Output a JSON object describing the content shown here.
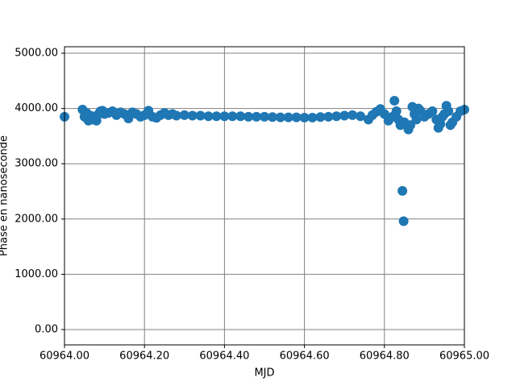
{
  "chart_data": {
    "type": "scatter",
    "xlabel": "MJD",
    "ylabel": "Phase en nanoseconde",
    "color": "#1f77b4",
    "grid": true,
    "xlim": [
      60964.0,
      60965.0
    ],
    "ylim": [
      -277,
      5117
    ],
    "xticks": [
      {
        "value": 60964.0,
        "label": "60964.00"
      },
      {
        "value": 60964.2,
        "label": "60964.20"
      },
      {
        "value": 60964.4,
        "label": "60964.40"
      },
      {
        "value": 60964.6,
        "label": "60964.60"
      },
      {
        "value": 60964.8,
        "label": "60964.80"
      },
      {
        "value": 60965.0,
        "label": "60965.00"
      }
    ],
    "yticks": [
      {
        "value": 0,
        "label": "0.00"
      },
      {
        "value": 1000,
        "label": "1000.00"
      },
      {
        "value": 2000,
        "label": "2000.00"
      },
      {
        "value": 3000,
        "label": "3000.00"
      },
      {
        "value": 4000,
        "label": "4000.00"
      },
      {
        "value": 5000,
        "label": "5000.00"
      }
    ],
    "x": [
      60964.0,
      60964.045,
      60964.05,
      60964.055,
      60964.06,
      60964.065,
      60964.07,
      60964.075,
      60964.08,
      60964.085,
      60964.09,
      60964.095,
      60964.1,
      60964.11,
      60964.12,
      60964.13,
      60964.14,
      60964.15,
      60964.16,
      60964.17,
      60964.18,
      60964.19,
      60964.2,
      60964.21,
      60964.22,
      60964.23,
      60964.24,
      60964.25,
      60964.26,
      60964.27,
      60964.28,
      60964.3,
      60964.32,
      60964.34,
      60964.36,
      60964.38,
      60964.4,
      60964.42,
      60964.44,
      60964.46,
      60964.48,
      60964.5,
      60964.52,
      60964.54,
      60964.56,
      60964.58,
      60964.6,
      60964.62,
      60964.64,
      60964.66,
      60964.68,
      60964.7,
      60964.72,
      60964.74,
      60964.76,
      60964.77,
      60964.78,
      60964.79,
      60964.8,
      60964.81,
      60964.82,
      60964.825,
      60964.83,
      60964.835,
      60964.84,
      60964.845,
      60964.848,
      60964.85,
      60964.86,
      60964.865,
      60964.87,
      60964.875,
      60964.88,
      60964.885,
      60964.89,
      60964.9,
      60964.91,
      60964.92,
      60964.93,
      60964.935,
      60964.94,
      60964.945,
      60964.95,
      60964.955,
      60964.96,
      60964.965,
      60964.97,
      60964.98,
      60964.99,
      60965.0
    ],
    "values": [
      3850,
      3980,
      3850,
      3920,
      3780,
      3870,
      3800,
      3830,
      3780,
      3900,
      3950,
      3960,
      3900,
      3920,
      3950,
      3880,
      3930,
      3900,
      3820,
      3930,
      3900,
      3850,
      3880,
      3960,
      3850,
      3830,
      3880,
      3920,
      3880,
      3900,
      3870,
      3880,
      3870,
      3870,
      3860,
      3860,
      3860,
      3860,
      3860,
      3850,
      3850,
      3850,
      3845,
      3840,
      3840,
      3840,
      3835,
      3835,
      3845,
      3850,
      3860,
      3870,
      3880,
      3860,
      3800,
      3880,
      3940,
      3990,
      3900,
      3780,
      3850,
      4140,
      3950,
      3800,
      3700,
      2510,
      1960,
      3750,
      3620,
      3700,
      4030,
      3900,
      3800,
      4000,
      3960,
      3850,
      3900,
      3950,
      3800,
      3650,
      3720,
      3850,
      3900,
      4050,
      3950,
      3700,
      3750,
      3850,
      3950,
      3980
    ]
  }
}
